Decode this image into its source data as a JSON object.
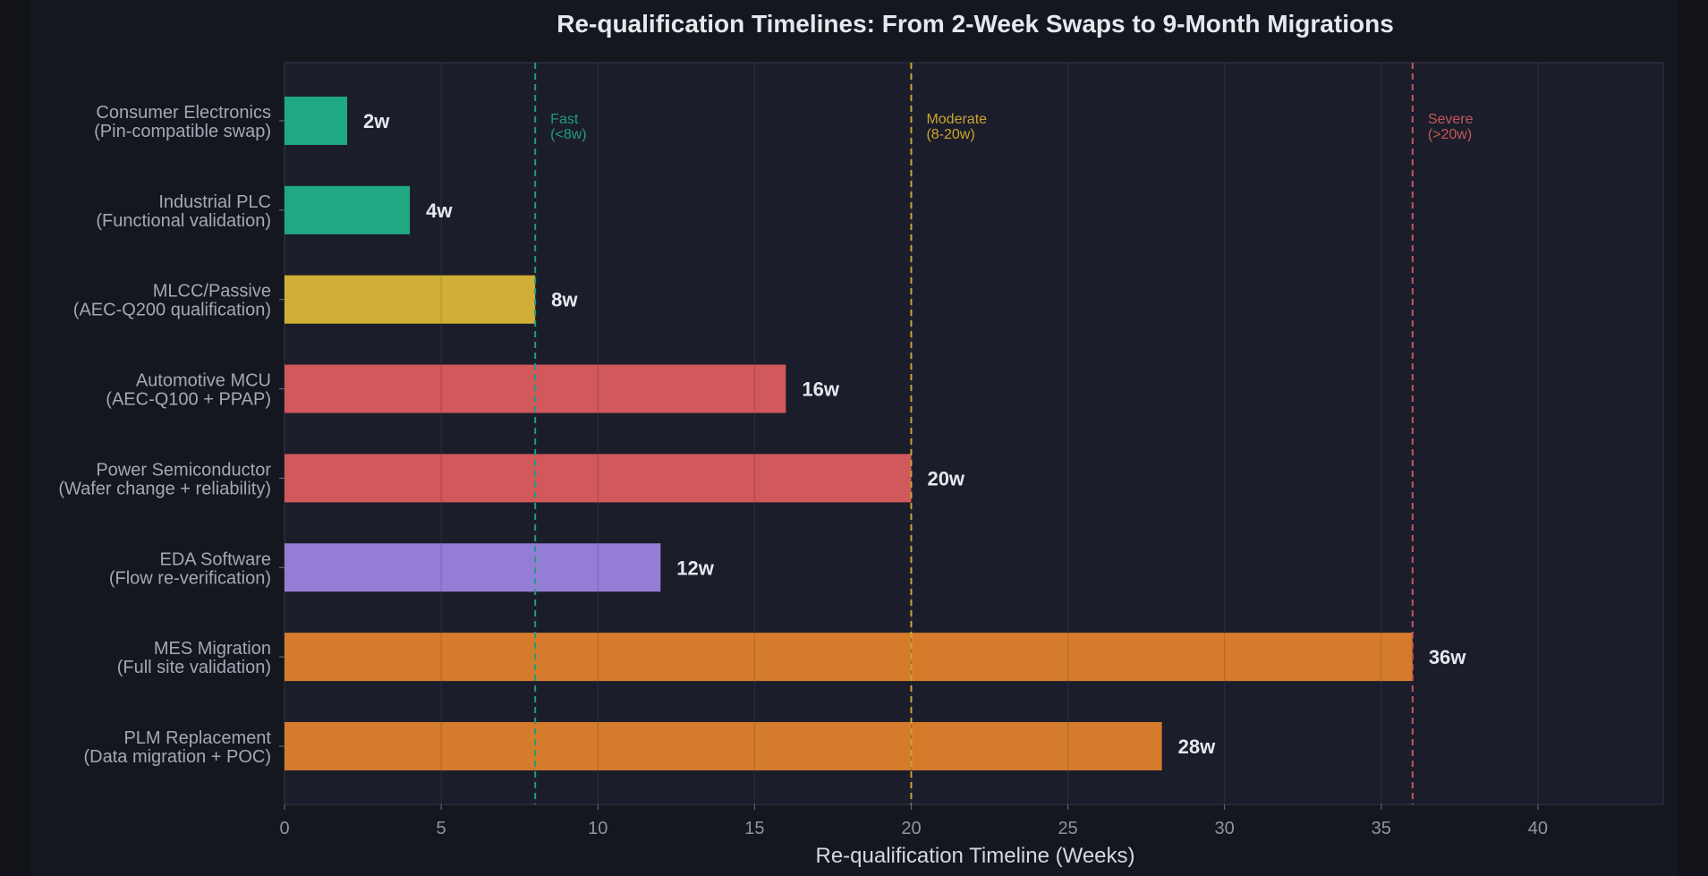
{
  "chart_data": {
    "type": "bar",
    "orientation": "horizontal",
    "title": "Re-qualification Timelines: From 2-Week Swaps to 9-Month Migrations",
    "xlabel": "Re-qualification Timeline (Weeks)",
    "ylabel": "",
    "xlim": [
      0,
      44
    ],
    "xticks": [
      0,
      5,
      10,
      15,
      20,
      25,
      30,
      35,
      40
    ],
    "grid": true,
    "categories": [
      {
        "line1": "Consumer Electronics",
        "line2": "(Pin-compatible swap)"
      },
      {
        "line1": "Industrial PLC",
        "line2": "(Functional validation)"
      },
      {
        "line1": "MLCC/Passive",
        "line2": "(AEC-Q200 qualification)"
      },
      {
        "line1": "Automotive MCU",
        "line2": "(AEC-Q100 + PPAP)"
      },
      {
        "line1": "Power Semiconductor",
        "line2": "(Wafer change + reliability)"
      },
      {
        "line1": "EDA Software",
        "line2": "(Flow re-verification)"
      },
      {
        "line1": "MES Migration",
        "line2": "(Full site validation)"
      },
      {
        "line1": "PLM Replacement",
        "line2": "(Data migration + POC)"
      }
    ],
    "values": [
      2,
      4,
      8,
      16,
      20,
      12,
      36,
      28
    ],
    "value_labels": [
      "2w",
      "4w",
      "8w",
      "16w",
      "20w",
      "12w",
      "36w",
      "28w"
    ],
    "colors": [
      "#20b087",
      "#20b087",
      "#dbb737",
      "#db5c5e",
      "#db5c5e",
      "#9b84de",
      "#df822c",
      "#df822c"
    ],
    "thresholds": [
      {
        "x": 8,
        "label1": "Fast",
        "label2": "(<8w)",
        "color": "#1f9c80"
      },
      {
        "x": 20,
        "label1": "Moderate",
        "label2": "(8-20w)",
        "color": "#c9a52f"
      },
      {
        "x": 36,
        "label1": "Severe",
        "label2": "(>20w)",
        "color": "#c4585a"
      }
    ]
  }
}
